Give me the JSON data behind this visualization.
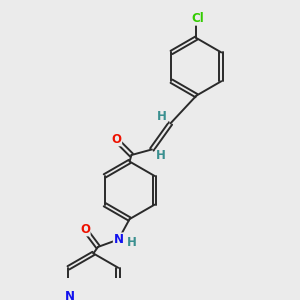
{
  "background_color": "#ebebeb",
  "bond_color": "#2a2a2a",
  "atom_colors": {
    "O": "#ee1100",
    "N": "#1111ee",
    "Cl": "#33cc00",
    "H": "#3a9090",
    "C": "#2a2a2a"
  },
  "font_size": 8.5
}
